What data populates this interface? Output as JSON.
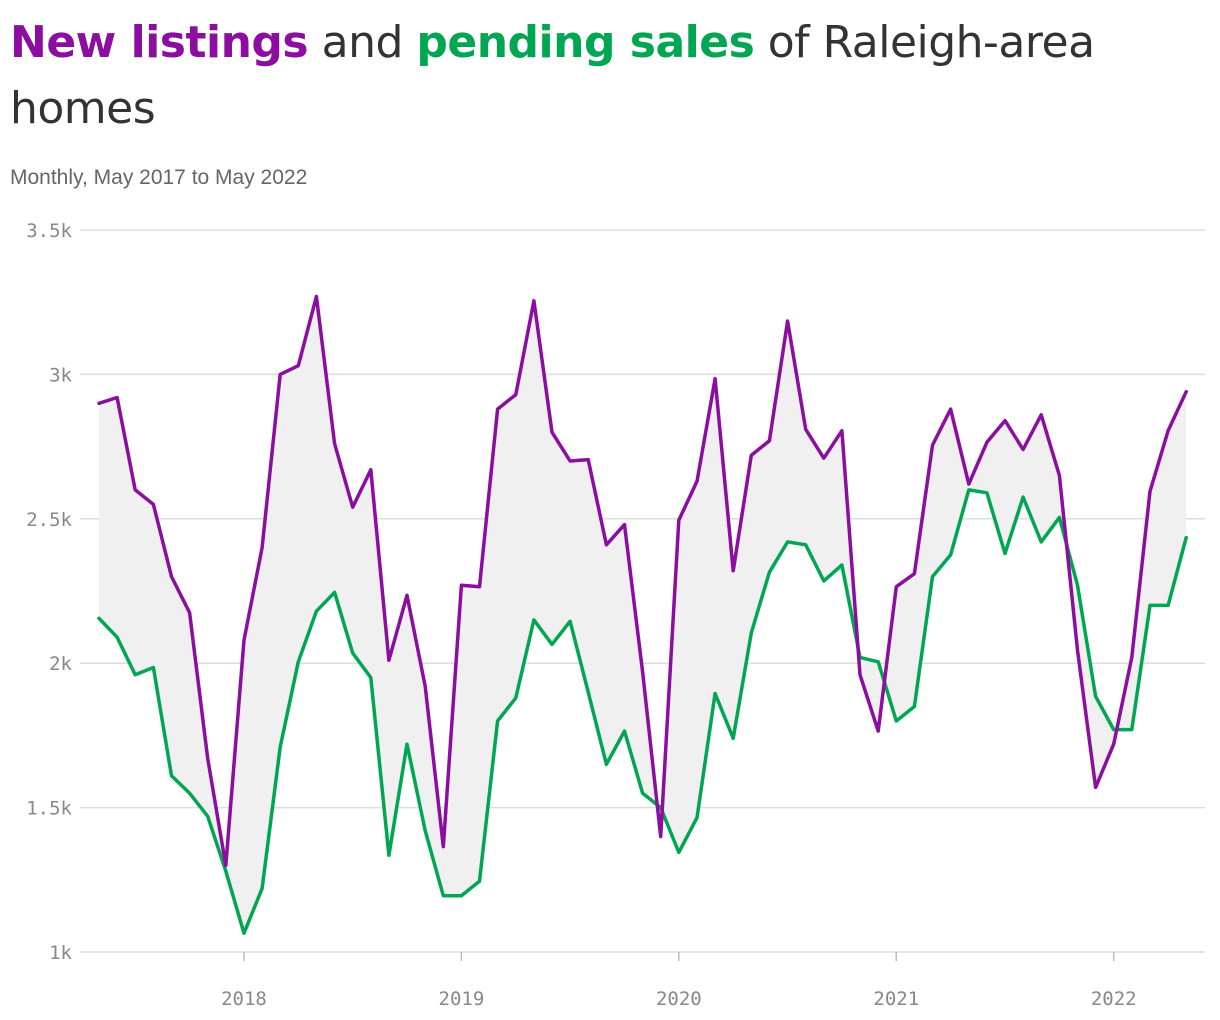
{
  "title": {
    "seg1": "New listings",
    "seg2": " and ",
    "seg3": "pending sales",
    "seg4": " of Raleigh-area homes"
  },
  "subtitle": "Monthly, May 2017 to May 2022",
  "colors": {
    "listings": "#8B0EA0",
    "pending": "#00A651",
    "fill": "#F0F0F0",
    "grid": "#DDDDDD"
  },
  "chart_data": {
    "type": "line",
    "title": "New listings and pending sales of Raleigh-area homes",
    "subtitle": "Monthly, May 2017 to May 2022",
    "x": [
      "2017-05",
      "2017-06",
      "2017-07",
      "2017-08",
      "2017-09",
      "2017-10",
      "2017-11",
      "2017-12",
      "2018-01",
      "2018-02",
      "2018-03",
      "2018-04",
      "2018-05",
      "2018-06",
      "2018-07",
      "2018-08",
      "2018-09",
      "2018-10",
      "2018-11",
      "2018-12",
      "2019-01",
      "2019-02",
      "2019-03",
      "2019-04",
      "2019-05",
      "2019-06",
      "2019-07",
      "2019-08",
      "2019-09",
      "2019-10",
      "2019-11",
      "2019-12",
      "2020-01",
      "2020-02",
      "2020-03",
      "2020-04",
      "2020-05",
      "2020-06",
      "2020-07",
      "2020-08",
      "2020-09",
      "2020-10",
      "2020-11",
      "2020-12",
      "2021-01",
      "2021-02",
      "2021-03",
      "2021-04",
      "2021-05",
      "2021-06",
      "2021-07",
      "2021-08",
      "2021-09",
      "2021-10",
      "2021-11",
      "2021-12",
      "2022-01",
      "2022-02",
      "2022-03",
      "2022-04",
      "2022-05"
    ],
    "series": [
      {
        "name": "New listings",
        "values": [
          2900,
          2920,
          2600,
          2550,
          2300,
          2175,
          1670,
          1300,
          2080,
          2400,
          3000,
          3030,
          3270,
          2760,
          2540,
          2670,
          2010,
          2235,
          1920,
          1365,
          2270,
          2265,
          2880,
          2930,
          3255,
          2800,
          2700,
          2705,
          2410,
          2480,
          1970,
          1400,
          2495,
          2630,
          2985,
          2320,
          2720,
          2770,
          3185,
          2810,
          2710,
          2805,
          1960,
          1765,
          2265,
          2310,
          2755,
          2880,
          2620,
          2765,
          2840,
          2740,
          2860,
          2650,
          2045,
          1570,
          1720,
          2020,
          2595,
          2805,
          2940
        ]
      },
      {
        "name": "Pending sales",
        "values": [
          2155,
          2090,
          1960,
          1985,
          1610,
          1550,
          1470,
          1280,
          1065,
          1220,
          1710,
          2005,
          2180,
          2245,
          2035,
          1950,
          1335,
          1720,
          1420,
          1195,
          1195,
          1245,
          1800,
          1880,
          2150,
          2065,
          2145,
          1900,
          1650,
          1765,
          1550,
          1500,
          1345,
          1465,
          1895,
          1740,
          2105,
          2315,
          2420,
          2410,
          2285,
          2340,
          2020,
          2005,
          1800,
          1850,
          2300,
          2375,
          2600,
          2590,
          2380,
          2575,
          2420,
          2505,
          2270,
          1885,
          1770,
          1770,
          2200,
          2200,
          2435
        ]
      }
    ],
    "y_ticks": [
      "1k",
      "1.5k",
      "2k",
      "2.5k",
      "3k",
      "3.5k"
    ],
    "x_ticks": [
      "2018",
      "2019",
      "2020",
      "2021",
      "2022"
    ],
    "ylim": [
      1000,
      3500
    ],
    "grid": true
  }
}
